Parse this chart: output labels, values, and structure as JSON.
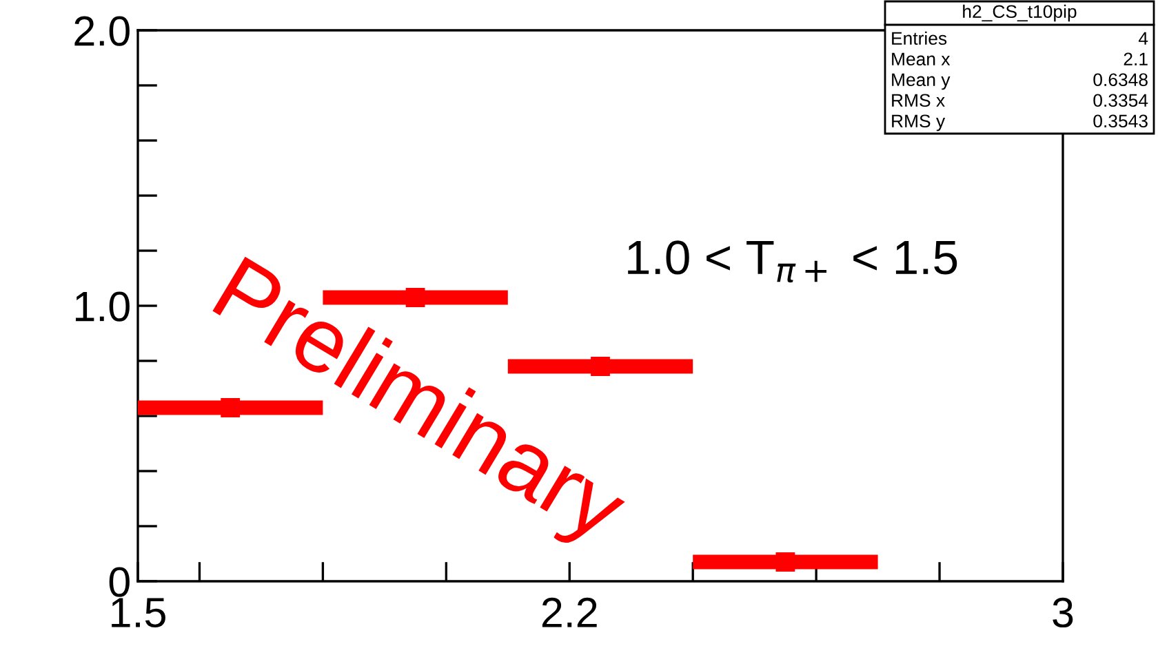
{
  "chart_data": {
    "type": "scatter",
    "color": "#ff0000",
    "marker": "square",
    "x": [
      1.65,
      1.95,
      2.25,
      2.55
    ],
    "values": [
      0.63,
      1.03,
      0.78,
      0.07
    ],
    "xerrors": [
      0.15,
      0.15,
      0.15,
      0.15
    ],
    "xlim": [
      1.5,
      3
    ],
    "xticks": [
      {
        "value": 1.5,
        "label": "1.5"
      },
      {
        "value": 1.6,
        "label": null
      },
      {
        "value": 1.8,
        "label": null
      },
      {
        "value": 2.0,
        "label": null
      },
      {
        "value": 2.2,
        "label": "2.2"
      },
      {
        "value": 2.4,
        "label": null
      },
      {
        "value": 2.6,
        "label": null
      },
      {
        "value": 2.8,
        "label": null
      },
      {
        "value": 3,
        "label": "3"
      }
    ],
    "ylim": [
      0,
      2.0
    ],
    "yticks": [
      {
        "value": 0,
        "label": "0"
      },
      {
        "value": 0.2,
        "label": null
      },
      {
        "value": 0.4,
        "label": null
      },
      {
        "value": 0.6,
        "label": null
      },
      {
        "value": 0.8,
        "label": null
      },
      {
        "value": 1.0,
        "label": "1.0"
      },
      {
        "value": 1.2,
        "label": null
      },
      {
        "value": 1.4,
        "label": null
      },
      {
        "value": 1.6,
        "label": null
      },
      {
        "value": 1.8,
        "label": null
      },
      {
        "value": 2.0,
        "label": "2.0"
      }
    ],
    "grid": false,
    "annotations": [
      "1.0 < T$_{π+}$ < 1.5",
      "Preliminary",
      "h2_CS_t10pip",
      "Entries",
      "4",
      "Mean x",
      "2.1",
      "Mean y",
      "0.6348",
      "RMS x",
      "0.3354",
      "RMS y",
      "0.3543"
    ]
  }
}
